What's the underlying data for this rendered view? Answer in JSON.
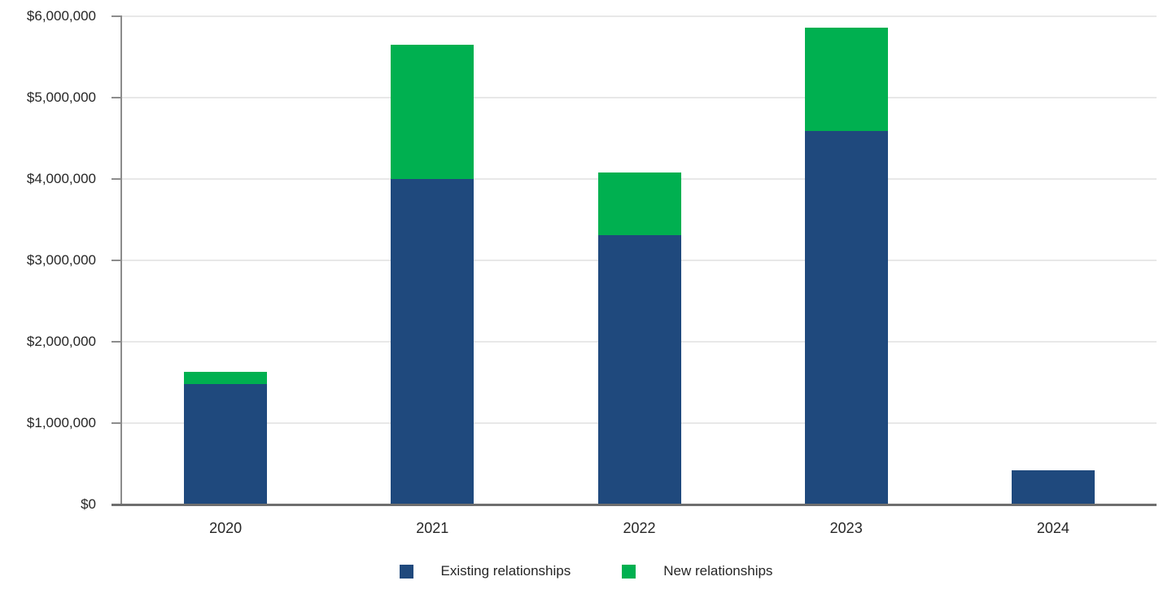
{
  "chart_data": {
    "type": "bar",
    "stacked": true,
    "title": "",
    "xlabel": "",
    "ylabel": "",
    "categories": [
      "2020",
      "2021",
      "2022",
      "2023",
      "2024"
    ],
    "series": [
      {
        "key": "existing-relationships",
        "name": "Existing relationships",
        "color": "#1F497D",
        "values": [
          1480000,
          4000000,
          3310000,
          4590000,
          420000
        ]
      },
      {
        "key": "new-relationships",
        "name": "New relationships",
        "color": "#00B050",
        "values": [
          150000,
          1650000,
          770000,
          1270000,
          0
        ]
      }
    ],
    "totals": [
      1630000,
      5650000,
      4080000,
      5860000,
      420000
    ],
    "ylim": [
      0,
      6000000
    ],
    "ytick_step": 1000000,
    "ytick_labels": [
      "$0",
      "$1,000,000",
      "$2,000,000",
      "$3,000,000",
      "$4,000,000",
      "$5,000,000",
      "$6,000,000"
    ],
    "grid": "horizontal",
    "legend_position": "bottom"
  }
}
